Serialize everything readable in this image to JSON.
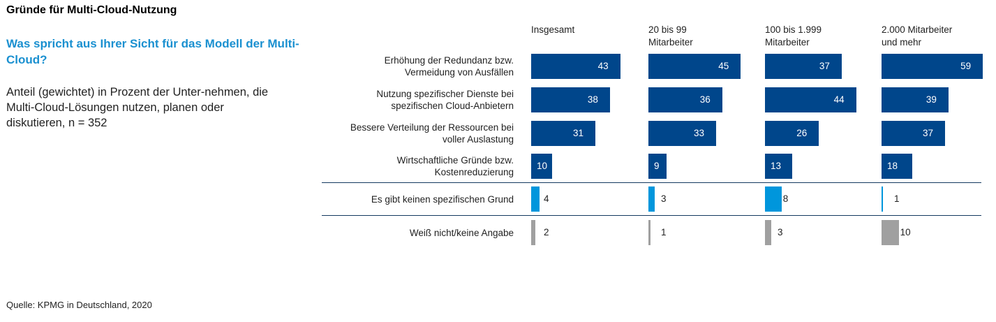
{
  "header": {
    "title": "Gründe für Multi-Cloud-Nutzung",
    "question": "Was spricht aus Ihrer Sicht für das Modell der Multi-Cloud?",
    "description": "Anteil (gewichtet) in Prozent der Unter-nehmen, die Multi-Cloud-Lösungen nutzen, planen oder diskutieren, n = 352"
  },
  "source": "Quelle: KPMG in Deutschland, 2020",
  "colors": {
    "main": "#00468b",
    "none": "#0096dc",
    "unknown": "#a0a0a0",
    "question": "#1a90d0"
  },
  "chart_data": {
    "type": "bar",
    "orientation": "horizontal",
    "title": "Gründe für Multi-Cloud-Nutzung",
    "subtitle": "Was spricht aus Ihrer Sicht für das Modell der Multi-Cloud?",
    "unit": "Prozent",
    "categories": [
      "Erhöhung der Redundanz bzw. Vermeidung von Ausfällen",
      "Nutzung spezifischer Dienste bei spezifischen Cloud-Anbietern",
      "Bessere Verteilung der Ressourcen bei voller Auslastung",
      "Wirtschaftliche Gründe bzw. Kostenreduzierung",
      "Es gibt keinen spezifischen Grund",
      "Weiß nicht/keine Angabe"
    ],
    "category_lines": [
      [
        "Erhöhung der Redundanz bzw.",
        "Vermeidung von Ausfällen"
      ],
      [
        "Nutzung spezifischer Dienste bei",
        "spezifischen Cloud-Anbietern"
      ],
      [
        "Bessere Verteilung der Ressourcen bei",
        "voller Auslastung"
      ],
      [
        "Wirtschaftliche Gründe bzw.",
        "Kostenreduzierung"
      ],
      [
        "Es gibt keinen spezifischen Grund"
      ],
      [
        "Weiß nicht/keine Angabe"
      ]
    ],
    "category_kind": [
      "main",
      "main",
      "main",
      "main",
      "none",
      "unknown"
    ],
    "series": [
      {
        "name": "Insgesamt",
        "name_lines": [
          "Insgesamt"
        ],
        "values": [
          43,
          38,
          31,
          10,
          4,
          2
        ]
      },
      {
        "name": "20 bis 99 Mitarbeiter",
        "name_lines": [
          "20 bis 99",
          "Mitarbeiter"
        ],
        "values": [
          45,
          36,
          33,
          9,
          3,
          1
        ]
      },
      {
        "name": "100 bis 1.999 Mitarbeiter",
        "name_lines": [
          "100 bis 1.999",
          "Mitarbeiter"
        ],
        "values": [
          37,
          44,
          26,
          13,
          8,
          3
        ]
      },
      {
        "name": "2.000 Mitarbeiter und mehr",
        "name_lines": [
          "2.000 Mitarbeiter",
          "und mehr"
        ],
        "values": [
          59,
          39,
          37,
          18,
          1,
          10
        ]
      }
    ],
    "grid": false,
    "legend": "none"
  }
}
